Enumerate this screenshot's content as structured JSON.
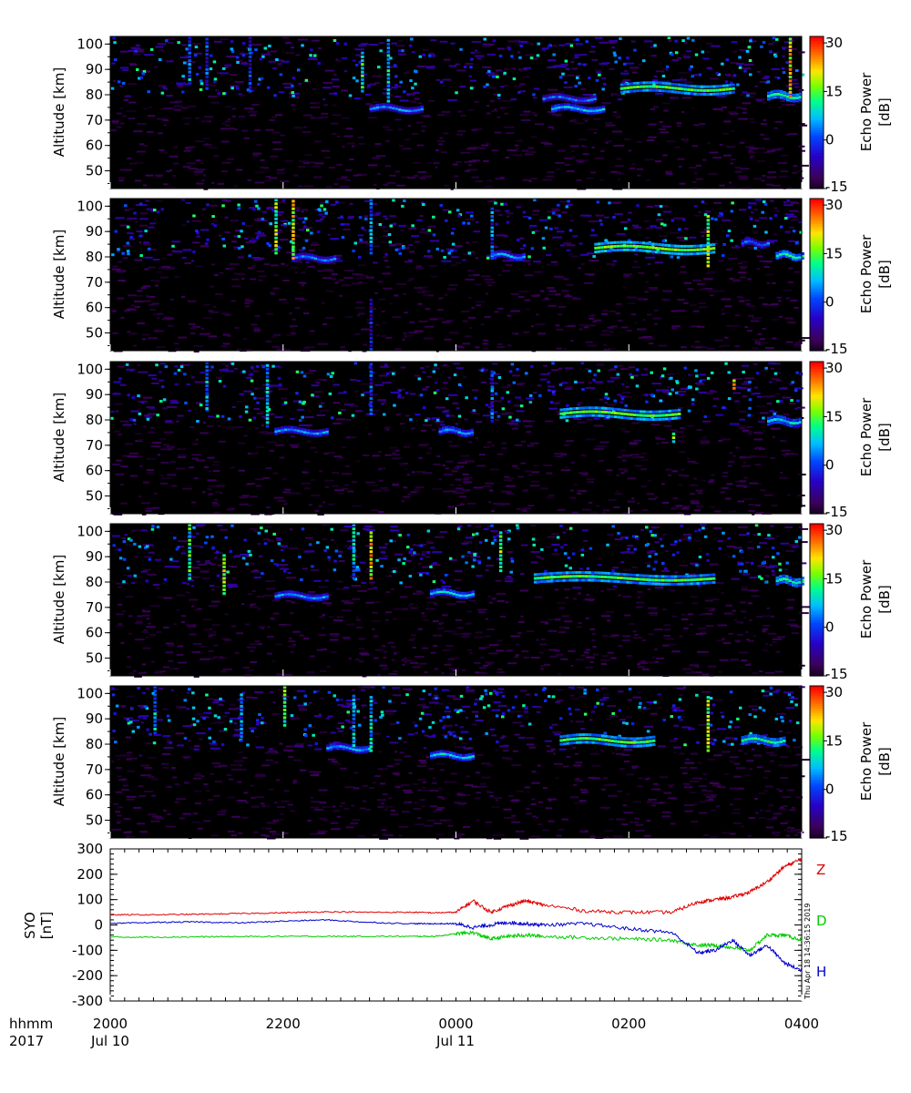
{
  "colorbar": {
    "label_line1": "Echo Power",
    "label_line2": "[dB]",
    "ticks": [
      "30",
      "15",
      "0",
      "-15"
    ],
    "range": [
      -15,
      32
    ]
  },
  "panel_ylabel": "Altitude [km]",
  "panel_yticks": [
    "100",
    "90",
    "80",
    "70",
    "60",
    "50"
  ],
  "mag": {
    "ylabel_line1": "SYO",
    "ylabel_line2": "[nT]",
    "yticks": [
      "300",
      "200",
      "100",
      "0",
      "-100",
      "-200",
      "-300"
    ],
    "series_labels": {
      "Z": "Z",
      "D": "D",
      "H": "H"
    },
    "colors": {
      "Z": "#e00000",
      "D": "#00cc00",
      "H": "#0000cc"
    },
    "timestamp": "Thu Apr 18 14:36:15 2019"
  },
  "xaxis": {
    "row1_label": "hhmm",
    "row2_label": "2017",
    "ticks": [
      "2000",
      "2200",
      "0000",
      "0200",
      "0400"
    ],
    "dates": [
      "Jul 10",
      "Jul 11"
    ]
  },
  "chart_data": [
    {
      "type": "heatmap",
      "panel": 1,
      "xlabel": "",
      "ylabel": "Altitude [km]",
      "xlim": [
        "2017-07-10 20:00",
        "2017-07-11 04:00"
      ],
      "ylim": [
        43,
        103
      ],
      "zlabel": "Echo Power [dB]",
      "zlim": [
        -15,
        32
      ],
      "layers": [
        {
          "t0": 3.0,
          "t1": 3.6,
          "alt": 75,
          "thick": 1.5,
          "power": 5
        },
        {
          "t0": 5.0,
          "t1": 5.6,
          "alt": 79,
          "thick": 1.5,
          "power": 3
        },
        {
          "t0": 5.1,
          "t1": 5.7,
          "alt": 75,
          "thick": 1.5,
          "power": 8
        },
        {
          "t0": 5.9,
          "t1": 7.2,
          "alt": 83,
          "thick": 2.5,
          "power": 14
        },
        {
          "t0": 7.6,
          "t1": 8.0,
          "alt": 80,
          "thick": 2.0,
          "power": 12
        }
      ],
      "columns": [
        {
          "t": 0.9,
          "a0": 85,
          "a1": 103,
          "power": 10
        },
        {
          "t": 1.1,
          "a0": 83,
          "a1": 103,
          "power": 6
        },
        {
          "t": 1.6,
          "a0": 82,
          "a1": 103,
          "power": 4
        },
        {
          "t": 2.9,
          "a0": 82,
          "a1": 97,
          "power": 18
        },
        {
          "t": 3.2,
          "a0": 78,
          "a1": 103,
          "power": 14
        },
        {
          "t": 7.85,
          "a0": 80,
          "a1": 103,
          "power": 28
        }
      ]
    },
    {
      "type": "heatmap",
      "panel": 2,
      "xlabel": "",
      "ylabel": "Altitude [km]",
      "xlim": [
        "2017-07-10 20:00",
        "2017-07-11 04:00"
      ],
      "ylim": [
        43,
        103
      ],
      "zlabel": "Echo Power [dB]",
      "zlim": [
        -15,
        32
      ],
      "layers": [
        {
          "t0": 2.1,
          "t1": 2.6,
          "alt": 80,
          "thick": 1.5,
          "power": 4
        },
        {
          "t0": 4.4,
          "t1": 4.8,
          "alt": 81,
          "thick": 1.5,
          "power": 6
        },
        {
          "t0": 5.6,
          "t1": 7.0,
          "alt": 84,
          "thick": 2.5,
          "power": 16
        },
        {
          "t0": 7.3,
          "t1": 7.6,
          "alt": 86,
          "thick": 1.5,
          "power": 4
        },
        {
          "t0": 7.7,
          "t1": 8.0,
          "alt": 81,
          "thick": 1.5,
          "power": 12
        }
      ],
      "columns": [
        {
          "t": 1.9,
          "a0": 82,
          "a1": 103,
          "power": 22
        },
        {
          "t": 2.1,
          "a0": 80,
          "a1": 103,
          "power": 26
        },
        {
          "t": 3.0,
          "a0": 44,
          "a1": 64,
          "power": 2
        },
        {
          "t": 3.0,
          "a0": 82,
          "a1": 103,
          "power": 10
        },
        {
          "t": 4.4,
          "a0": 80,
          "a1": 100,
          "power": 8
        },
        {
          "t": 6.9,
          "a0": 77,
          "a1": 97,
          "power": 24
        }
      ]
    },
    {
      "type": "heatmap",
      "panel": 3,
      "xlabel": "",
      "ylabel": "Altitude [km]",
      "xlim": [
        "2017-07-10 20:00",
        "2017-07-11 04:00"
      ],
      "ylim": [
        43,
        103
      ],
      "zlabel": "Echo Power [dB]",
      "zlim": [
        -15,
        32
      ],
      "layers": [
        {
          "t0": 1.9,
          "t1": 2.5,
          "alt": 76,
          "thick": 1.5,
          "power": 5
        },
        {
          "t0": 3.8,
          "t1": 4.2,
          "alt": 76,
          "thick": 1.5,
          "power": 6
        },
        {
          "t0": 5.2,
          "t1": 6.6,
          "alt": 83,
          "thick": 2.5,
          "power": 15
        },
        {
          "t0": 7.6,
          "t1": 8.0,
          "alt": 80,
          "thick": 2.0,
          "power": 8
        }
      ],
      "columns": [
        {
          "t": 1.1,
          "a0": 85,
          "a1": 103,
          "power": 10
        },
        {
          "t": 1.8,
          "a0": 78,
          "a1": 103,
          "power": 12
        },
        {
          "t": 3.0,
          "a0": 83,
          "a1": 103,
          "power": 6
        },
        {
          "t": 4.4,
          "a0": 80,
          "a1": 100,
          "power": 8
        },
        {
          "t": 6.5,
          "a0": 72,
          "a1": 76,
          "power": 20
        },
        {
          "t": 7.2,
          "a0": 93,
          "a1": 97,
          "power": 28
        }
      ]
    },
    {
      "type": "heatmap",
      "panel": 4,
      "xlabel": "",
      "ylabel": "Altitude [km]",
      "xlim": [
        "2017-07-10 20:00",
        "2017-07-11 04:00"
      ],
      "ylim": [
        43,
        103
      ],
      "zlabel": "Echo Power [dB]",
      "zlim": [
        -15,
        32
      ],
      "layers": [
        {
          "t0": 1.9,
          "t1": 2.5,
          "alt": 75,
          "thick": 1.5,
          "power": 5
        },
        {
          "t0": 3.7,
          "t1": 4.2,
          "alt": 76,
          "thick": 1.5,
          "power": 8
        },
        {
          "t0": 4.9,
          "t1": 7.0,
          "alt": 82,
          "thick": 2.5,
          "power": 14
        },
        {
          "t0": 7.7,
          "t1": 8.0,
          "alt": 81,
          "thick": 2.0,
          "power": 12
        }
      ],
      "columns": [
        {
          "t": 0.9,
          "a0": 82,
          "a1": 103,
          "power": 18
        },
        {
          "t": 1.3,
          "a0": 76,
          "a1": 92,
          "power": 24
        },
        {
          "t": 2.8,
          "a0": 82,
          "a1": 103,
          "power": 14
        },
        {
          "t": 3.0,
          "a0": 82,
          "a1": 100,
          "power": 28
        },
        {
          "t": 4.5,
          "a0": 85,
          "a1": 100,
          "power": 22
        }
      ]
    },
    {
      "type": "heatmap",
      "panel": 5,
      "xlabel": "",
      "ylabel": "Altitude [km]",
      "xlim": [
        "2017-07-10 20:00",
        "2017-07-11 04:00"
      ],
      "ylim": [
        43,
        103
      ],
      "zlabel": "Echo Power [dB]",
      "zlim": [
        -15,
        32
      ],
      "layers": [
        {
          "t0": 2.5,
          "t1": 3.0,
          "alt": 79,
          "thick": 1.5,
          "power": 6
        },
        {
          "t0": 3.7,
          "t1": 4.2,
          "alt": 76,
          "thick": 1.5,
          "power": 8
        },
        {
          "t0": 5.2,
          "t1": 6.3,
          "alt": 82,
          "thick": 2.5,
          "power": 14
        },
        {
          "t0": 7.3,
          "t1": 7.8,
          "alt": 82,
          "thick": 2.0,
          "power": 12
        }
      ],
      "columns": [
        {
          "t": 0.5,
          "a0": 85,
          "a1": 103,
          "power": 12
        },
        {
          "t": 1.5,
          "a0": 82,
          "a1": 100,
          "power": 10
        },
        {
          "t": 2.0,
          "a0": 88,
          "a1": 103,
          "power": 20
        },
        {
          "t": 2.8,
          "a0": 80,
          "a1": 100,
          "power": 12
        },
        {
          "t": 3.0,
          "a0": 78,
          "a1": 100,
          "power": 14
        },
        {
          "t": 6.9,
          "a0": 78,
          "a1": 100,
          "power": 24
        }
      ]
    },
    {
      "type": "line",
      "xlabel": "",
      "ylabel": "SYO [nT]",
      "xlim": [
        "2017-07-10 20:00",
        "2017-07-11 04:00"
      ],
      "ylim": [
        -300,
        300
      ],
      "x_hours_after_2000": [
        0,
        0.5,
        1,
        1.5,
        2,
        2.5,
        3,
        3.5,
        3.75,
        4.0,
        4.2,
        4.4,
        4.6,
        4.8,
        5.0,
        5.5,
        6.0,
        6.5,
        6.8,
        7.0,
        7.2,
        7.4,
        7.6,
        7.8,
        8.0
      ],
      "series": [
        {
          "name": "Z",
          "values": [
            40,
            40,
            42,
            45,
            48,
            52,
            50,
            50,
            48,
            50,
            95,
            50,
            75,
            95,
            80,
            55,
            50,
            50,
            90,
            100,
            110,
            130,
            170,
            230,
            260
          ]
        },
        {
          "name": "D",
          "values": [
            -48,
            -48,
            -47,
            -46,
            -45,
            -45,
            -45,
            -45,
            -45,
            -35,
            -30,
            -55,
            -45,
            -40,
            -45,
            -50,
            -55,
            -60,
            -80,
            -80,
            -90,
            -100,
            -40,
            -40,
            -60
          ]
        },
        {
          "name": "H",
          "values": [
            5,
            10,
            12,
            8,
            15,
            20,
            10,
            5,
            5,
            5,
            -10,
            0,
            10,
            5,
            0,
            5,
            -15,
            -30,
            -110,
            -100,
            -60,
            -120,
            -80,
            -150,
            -180
          ]
        }
      ]
    }
  ]
}
